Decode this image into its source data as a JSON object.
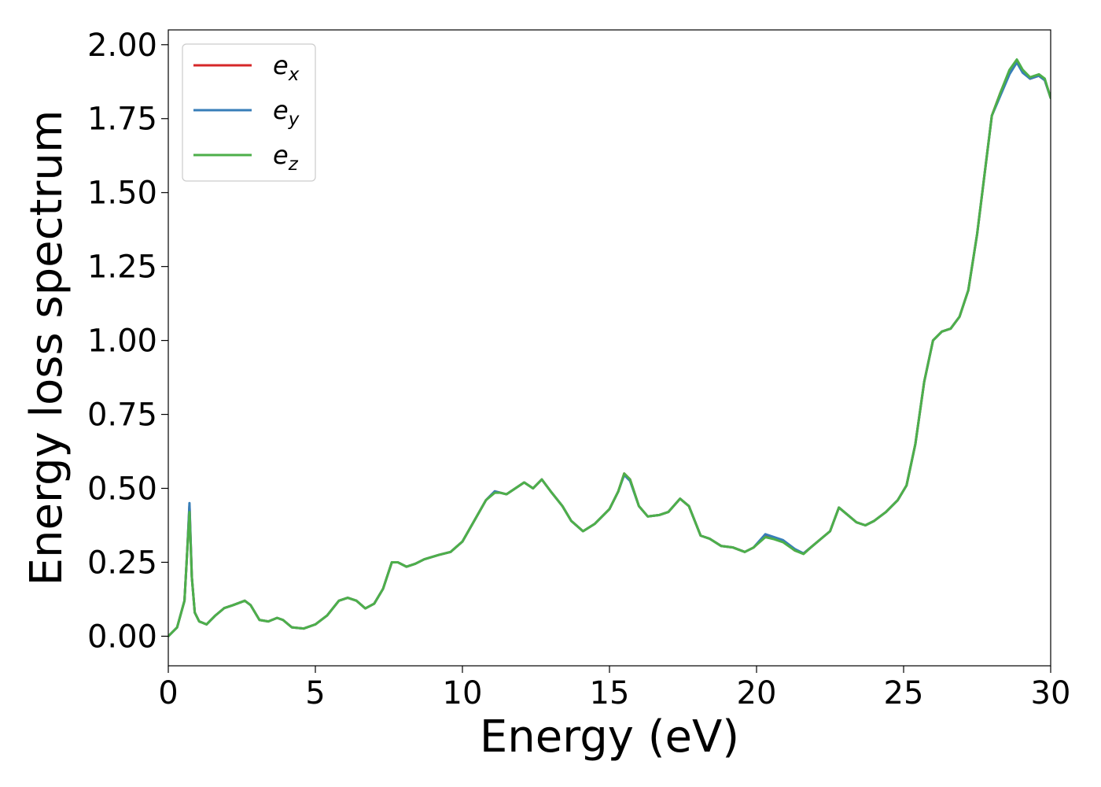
{
  "chart_data": {
    "type": "line",
    "xlabel": "Energy (eV)",
    "ylabel": "Energy loss spectrum",
    "xlim": [
      0,
      30
    ],
    "ylim": [
      -0.1,
      2.05
    ],
    "x_ticks": [
      "0",
      "5",
      "10",
      "15",
      "20",
      "25",
      "30"
    ],
    "y_ticks": [
      "0.00",
      "0.25",
      "0.50",
      "0.75",
      "1.00",
      "1.25",
      "1.50",
      "1.75",
      "2.00"
    ],
    "grid": false,
    "legend_position": "upper-left",
    "series": [
      {
        "name": "e_x",
        "legend_base": "e",
        "legend_sub": "x",
        "color": "#d62728",
        "points": [
          [
            0,
            0.0
          ],
          [
            0.3,
            0.03
          ],
          [
            0.55,
            0.12
          ],
          [
            0.65,
            0.3
          ],
          [
            0.72,
            0.44
          ],
          [
            0.8,
            0.2
          ],
          [
            0.9,
            0.08
          ],
          [
            1.05,
            0.05
          ],
          [
            1.3,
            0.04
          ],
          [
            1.6,
            0.07
          ],
          [
            1.9,
            0.095
          ],
          [
            2.2,
            0.105
          ],
          [
            2.6,
            0.12
          ],
          [
            2.8,
            0.105
          ],
          [
            3.1,
            0.055
          ],
          [
            3.4,
            0.05
          ],
          [
            3.7,
            0.062
          ],
          [
            3.9,
            0.055
          ],
          [
            4.2,
            0.03
          ],
          [
            4.6,
            0.026
          ],
          [
            5.0,
            0.04
          ],
          [
            5.4,
            0.07
          ],
          [
            5.8,
            0.12
          ],
          [
            6.1,
            0.13
          ],
          [
            6.4,
            0.12
          ],
          [
            6.7,
            0.094
          ],
          [
            7.0,
            0.11
          ],
          [
            7.3,
            0.16
          ],
          [
            7.6,
            0.25
          ],
          [
            7.8,
            0.25
          ],
          [
            8.1,
            0.235
          ],
          [
            8.4,
            0.245
          ],
          [
            8.7,
            0.26
          ],
          [
            9.2,
            0.275
          ],
          [
            9.6,
            0.285
          ],
          [
            10.0,
            0.32
          ],
          [
            10.4,
            0.39
          ],
          [
            10.8,
            0.46
          ],
          [
            11.1,
            0.49
          ],
          [
            11.3,
            0.485
          ],
          [
            11.5,
            0.48
          ],
          [
            11.8,
            0.5
          ],
          [
            12.1,
            0.52
          ],
          [
            12.4,
            0.5
          ],
          [
            12.7,
            0.53
          ],
          [
            13.0,
            0.49
          ],
          [
            13.4,
            0.44
          ],
          [
            13.7,
            0.39
          ],
          [
            14.1,
            0.355
          ],
          [
            14.5,
            0.38
          ],
          [
            15.0,
            0.43
          ],
          [
            15.3,
            0.49
          ],
          [
            15.5,
            0.55
          ],
          [
            15.7,
            0.53
          ],
          [
            16.0,
            0.44
          ],
          [
            16.3,
            0.405
          ],
          [
            16.7,
            0.41
          ],
          [
            17.0,
            0.42
          ],
          [
            17.4,
            0.465
          ],
          [
            17.7,
            0.44
          ],
          [
            18.1,
            0.34
          ],
          [
            18.4,
            0.33
          ],
          [
            18.8,
            0.305
          ],
          [
            19.2,
            0.3
          ],
          [
            19.6,
            0.285
          ],
          [
            19.9,
            0.3
          ],
          [
            20.3,
            0.34
          ],
          [
            20.6,
            0.33
          ],
          [
            20.9,
            0.32
          ],
          [
            21.3,
            0.29
          ],
          [
            21.6,
            0.28
          ],
          [
            21.9,
            0.305
          ],
          [
            22.2,
            0.33
          ],
          [
            22.5,
            0.355
          ],
          [
            22.8,
            0.435
          ],
          [
            23.1,
            0.41
          ],
          [
            23.4,
            0.385
          ],
          [
            23.7,
            0.375
          ],
          [
            24.0,
            0.39
          ],
          [
            24.4,
            0.42
          ],
          [
            24.8,
            0.46
          ],
          [
            25.1,
            0.51
          ],
          [
            25.4,
            0.65
          ],
          [
            25.7,
            0.86
          ],
          [
            26.0,
            1.0
          ],
          [
            26.3,
            1.03
          ],
          [
            26.6,
            1.04
          ],
          [
            26.9,
            1.08
          ],
          [
            27.2,
            1.17
          ],
          [
            27.5,
            1.36
          ],
          [
            27.8,
            1.6
          ],
          [
            28.0,
            1.76
          ],
          [
            28.3,
            1.84
          ],
          [
            28.6,
            1.91
          ],
          [
            28.85,
            1.945
          ],
          [
            29.05,
            1.91
          ],
          [
            29.3,
            1.885
          ],
          [
            29.6,
            1.895
          ],
          [
            29.8,
            1.88
          ],
          [
            30.0,
            1.82
          ]
        ]
      },
      {
        "name": "e_y",
        "legend_base": "e",
        "legend_sub": "y",
        "color": "#377eb8",
        "points": [
          [
            0,
            0.0
          ],
          [
            0.3,
            0.03
          ],
          [
            0.55,
            0.12
          ],
          [
            0.65,
            0.3
          ],
          [
            0.72,
            0.45
          ],
          [
            0.8,
            0.2
          ],
          [
            0.9,
            0.08
          ],
          [
            1.05,
            0.05
          ],
          [
            1.3,
            0.04
          ],
          [
            1.6,
            0.07
          ],
          [
            1.9,
            0.095
          ],
          [
            2.2,
            0.105
          ],
          [
            2.6,
            0.12
          ],
          [
            2.8,
            0.105
          ],
          [
            3.1,
            0.055
          ],
          [
            3.4,
            0.05
          ],
          [
            3.7,
            0.062
          ],
          [
            3.9,
            0.055
          ],
          [
            4.2,
            0.03
          ],
          [
            4.6,
            0.026
          ],
          [
            5.0,
            0.04
          ],
          [
            5.4,
            0.07
          ],
          [
            5.8,
            0.12
          ],
          [
            6.1,
            0.13
          ],
          [
            6.4,
            0.12
          ],
          [
            6.7,
            0.094
          ],
          [
            7.0,
            0.11
          ],
          [
            7.3,
            0.16
          ],
          [
            7.6,
            0.25
          ],
          [
            7.8,
            0.25
          ],
          [
            8.1,
            0.235
          ],
          [
            8.4,
            0.245
          ],
          [
            8.7,
            0.26
          ],
          [
            9.2,
            0.275
          ],
          [
            9.6,
            0.285
          ],
          [
            10.0,
            0.32
          ],
          [
            10.4,
            0.39
          ],
          [
            10.8,
            0.46
          ],
          [
            11.1,
            0.49
          ],
          [
            11.3,
            0.485
          ],
          [
            11.5,
            0.48
          ],
          [
            11.8,
            0.5
          ],
          [
            12.1,
            0.52
          ],
          [
            12.4,
            0.5
          ],
          [
            12.7,
            0.53
          ],
          [
            13.0,
            0.49
          ],
          [
            13.4,
            0.44
          ],
          [
            13.7,
            0.39
          ],
          [
            14.1,
            0.355
          ],
          [
            14.5,
            0.38
          ],
          [
            15.0,
            0.43
          ],
          [
            15.3,
            0.49
          ],
          [
            15.5,
            0.545
          ],
          [
            15.7,
            0.525
          ],
          [
            16.0,
            0.44
          ],
          [
            16.3,
            0.405
          ],
          [
            16.7,
            0.41
          ],
          [
            17.0,
            0.42
          ],
          [
            17.4,
            0.465
          ],
          [
            17.7,
            0.44
          ],
          [
            18.1,
            0.34
          ],
          [
            18.4,
            0.33
          ],
          [
            18.8,
            0.305
          ],
          [
            19.2,
            0.3
          ],
          [
            19.6,
            0.285
          ],
          [
            19.9,
            0.3
          ],
          [
            20.3,
            0.345
          ],
          [
            20.6,
            0.335
          ],
          [
            20.9,
            0.325
          ],
          [
            21.3,
            0.295
          ],
          [
            21.6,
            0.28
          ],
          [
            21.9,
            0.305
          ],
          [
            22.2,
            0.33
          ],
          [
            22.5,
            0.355
          ],
          [
            22.8,
            0.435
          ],
          [
            23.1,
            0.41
          ],
          [
            23.4,
            0.385
          ],
          [
            23.7,
            0.375
          ],
          [
            24.0,
            0.39
          ],
          [
            24.4,
            0.42
          ],
          [
            24.8,
            0.46
          ],
          [
            25.1,
            0.51
          ],
          [
            25.4,
            0.65
          ],
          [
            25.7,
            0.86
          ],
          [
            26.0,
            1.0
          ],
          [
            26.3,
            1.03
          ],
          [
            26.6,
            1.04
          ],
          [
            26.9,
            1.08
          ],
          [
            27.2,
            1.17
          ],
          [
            27.5,
            1.36
          ],
          [
            27.8,
            1.6
          ],
          [
            28.0,
            1.76
          ],
          [
            28.3,
            1.83
          ],
          [
            28.6,
            1.9
          ],
          [
            28.85,
            1.94
          ],
          [
            29.05,
            1.905
          ],
          [
            29.3,
            1.885
          ],
          [
            29.6,
            1.895
          ],
          [
            29.8,
            1.88
          ],
          [
            30.0,
            1.82
          ]
        ]
      },
      {
        "name": "e_z",
        "legend_base": "e",
        "legend_sub": "z",
        "color": "#4daf4a",
        "points": [
          [
            0,
            0.0
          ],
          [
            0.3,
            0.03
          ],
          [
            0.55,
            0.12
          ],
          [
            0.65,
            0.3
          ],
          [
            0.72,
            0.42
          ],
          [
            0.8,
            0.2
          ],
          [
            0.9,
            0.08
          ],
          [
            1.05,
            0.05
          ],
          [
            1.3,
            0.04
          ],
          [
            1.6,
            0.07
          ],
          [
            1.9,
            0.095
          ],
          [
            2.2,
            0.105
          ],
          [
            2.6,
            0.12
          ],
          [
            2.8,
            0.105
          ],
          [
            3.1,
            0.055
          ],
          [
            3.4,
            0.05
          ],
          [
            3.7,
            0.062
          ],
          [
            3.9,
            0.055
          ],
          [
            4.2,
            0.03
          ],
          [
            4.6,
            0.026
          ],
          [
            5.0,
            0.04
          ],
          [
            5.4,
            0.07
          ],
          [
            5.8,
            0.12
          ],
          [
            6.1,
            0.13
          ],
          [
            6.4,
            0.12
          ],
          [
            6.7,
            0.094
          ],
          [
            7.0,
            0.11
          ],
          [
            7.3,
            0.16
          ],
          [
            7.6,
            0.25
          ],
          [
            7.8,
            0.25
          ],
          [
            8.1,
            0.235
          ],
          [
            8.4,
            0.245
          ],
          [
            8.7,
            0.26
          ],
          [
            9.2,
            0.275
          ],
          [
            9.6,
            0.285
          ],
          [
            10.0,
            0.32
          ],
          [
            10.4,
            0.39
          ],
          [
            10.8,
            0.46
          ],
          [
            11.1,
            0.485
          ],
          [
            11.3,
            0.485
          ],
          [
            11.5,
            0.48
          ],
          [
            11.8,
            0.5
          ],
          [
            12.1,
            0.52
          ],
          [
            12.4,
            0.5
          ],
          [
            12.7,
            0.53
          ],
          [
            13.0,
            0.49
          ],
          [
            13.4,
            0.44
          ],
          [
            13.7,
            0.39
          ],
          [
            14.1,
            0.355
          ],
          [
            14.5,
            0.38
          ],
          [
            15.0,
            0.43
          ],
          [
            15.3,
            0.49
          ],
          [
            15.5,
            0.55
          ],
          [
            15.7,
            0.53
          ],
          [
            16.0,
            0.44
          ],
          [
            16.3,
            0.405
          ],
          [
            16.7,
            0.41
          ],
          [
            17.0,
            0.42
          ],
          [
            17.4,
            0.465
          ],
          [
            17.7,
            0.44
          ],
          [
            18.1,
            0.34
          ],
          [
            18.4,
            0.33
          ],
          [
            18.8,
            0.305
          ],
          [
            19.2,
            0.3
          ],
          [
            19.6,
            0.285
          ],
          [
            19.9,
            0.3
          ],
          [
            20.3,
            0.335
          ],
          [
            20.6,
            0.328
          ],
          [
            20.9,
            0.318
          ],
          [
            21.3,
            0.29
          ],
          [
            21.6,
            0.278
          ],
          [
            21.9,
            0.305
          ],
          [
            22.2,
            0.33
          ],
          [
            22.5,
            0.355
          ],
          [
            22.8,
            0.435
          ],
          [
            23.1,
            0.41
          ],
          [
            23.4,
            0.385
          ],
          [
            23.7,
            0.375
          ],
          [
            24.0,
            0.39
          ],
          [
            24.4,
            0.42
          ],
          [
            24.8,
            0.46
          ],
          [
            25.1,
            0.51
          ],
          [
            25.4,
            0.65
          ],
          [
            25.7,
            0.86
          ],
          [
            26.0,
            1.0
          ],
          [
            26.3,
            1.03
          ],
          [
            26.6,
            1.04
          ],
          [
            26.9,
            1.08
          ],
          [
            27.2,
            1.17
          ],
          [
            27.5,
            1.36
          ],
          [
            27.8,
            1.6
          ],
          [
            28.0,
            1.76
          ],
          [
            28.3,
            1.84
          ],
          [
            28.6,
            1.915
          ],
          [
            28.85,
            1.95
          ],
          [
            29.05,
            1.915
          ],
          [
            29.3,
            1.89
          ],
          [
            29.6,
            1.9
          ],
          [
            29.8,
            1.885
          ],
          [
            30.0,
            1.82
          ]
        ]
      }
    ]
  }
}
